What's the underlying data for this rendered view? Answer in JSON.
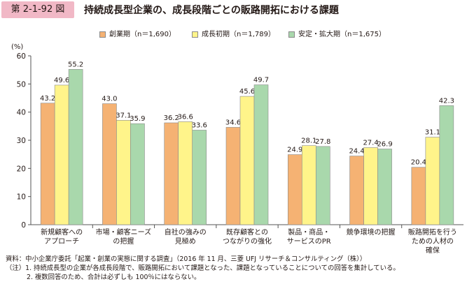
{
  "header": {
    "figure_number": "第 2-1-92 図",
    "title": "持続成長型企業の、成長段階ごとの販路開拓における課題"
  },
  "chart_data": {
    "type": "bar",
    "ylabel": "(%)",
    "ylim": [
      0,
      60
    ],
    "yticks": [
      0,
      10,
      20,
      30,
      40,
      50,
      60
    ],
    "grid": false,
    "legend_position": "top",
    "categories": [
      [
        "新規顧客への",
        "アプローチ"
      ],
      [
        "市場・顧客ニーズ",
        "の把握"
      ],
      [
        "自社の強みの",
        "見極め"
      ],
      [
        "既存顧客との",
        "つながりの強化"
      ],
      [
        "製品・商品・",
        "サービスのPR"
      ],
      [
        "競争環境の把握"
      ],
      [
        "販路開拓を行う",
        "ための人材の",
        "確保"
      ]
    ],
    "series": [
      {
        "name": "創業期（n＝1,690）",
        "color": "#f5b273",
        "values": [
          43.2,
          43.0,
          36.2,
          34.6,
          24.9,
          24.4,
          20.4
        ]
      },
      {
        "name": "成長初期（n＝1,789）",
        "color": "#fff48a",
        "values": [
          49.6,
          37.1,
          36.6,
          45.6,
          28.1,
          27.4,
          31.1
        ]
      },
      {
        "name": "安定・拡大期（n＝1,675）",
        "color": "#a9d8ac",
        "values": [
          55.2,
          35.9,
          33.6,
          49.7,
          27.8,
          26.9,
          42.3
        ]
      }
    ]
  },
  "notes": {
    "source": "資料：中小企業庁委託「起業・創業の実態に関する調査」（2016 年 11 月、三菱 UFJ リサーチ＆コンサルティング（株））",
    "note1": "（注）1. 持続成長型の企業が各成長段階で、販路開拓において課題となった、課題となっていることについての回答を集計している。",
    "note2": "2. 複数回答のため、合計は必ずしも 100％にはならない。"
  }
}
